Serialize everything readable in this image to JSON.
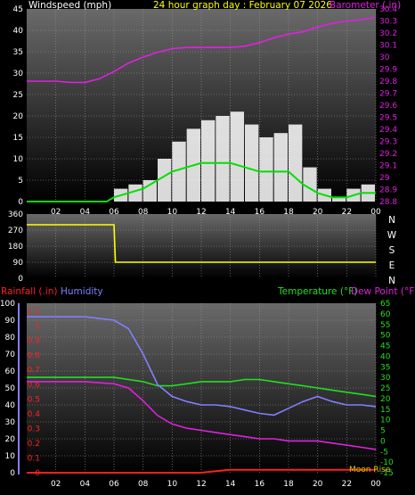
{
  "colors": {
    "windspeed": "#ffffff",
    "wind_avg": "#00e000",
    "gust_fill": "#c8ffc8",
    "barometer": "#e020e0",
    "direction": "#ffff00",
    "rainfall": "#ff2020",
    "humidity": "#8080ff",
    "temperature": "#20e020",
    "dewpoint": "#e020e0",
    "title": "#ffff00",
    "axis_text": "#ffffff",
    "moon": "#d0d000"
  },
  "x_ticks": [
    "02",
    "04",
    "06",
    "08",
    "10",
    "12",
    "14",
    "16",
    "18",
    "20",
    "22",
    "00"
  ],
  "panel1": {
    "title": "24 hour graph day : February 07 2026",
    "left_label": "Windspeed (mph)",
    "right_label": "Barometer (.in)",
    "left_ticks": [
      "45",
      "40",
      "35",
      "30",
      "25",
      "20",
      "15",
      "10",
      "5",
      "0"
    ],
    "right_ticks": [
      "30.4",
      "30.3",
      "30.2",
      "30.1",
      "30",
      "29.9",
      "29.8",
      "29.7",
      "29.6",
      "29.5",
      "29.4",
      "29.3",
      "29.2",
      "29.1",
      "29",
      "28.9",
      "28.8"
    ]
  },
  "panel2": {
    "left_ticks": [
      "360",
      "270",
      "180",
      "90",
      "0"
    ],
    "compass": [
      "N",
      "W",
      "S",
      "E",
      "N"
    ]
  },
  "panel3": {
    "rain_label": "Rainfall (.in)",
    "humidity_label": "Humidity",
    "temp_label": "Temperature (°F)",
    "dew_label": "Dew Point (°F)",
    "humidity_ticks": [
      "100",
      "90",
      "80",
      "70",
      "60",
      "50",
      "40",
      "30",
      "20",
      "10",
      "0"
    ],
    "rain_ticks": [
      "1.1",
      "1",
      "0.9",
      "0.8",
      "0.7",
      "0.6",
      "0.5",
      "0.4",
      "0.3",
      "0.2",
      "0.1",
      "0"
    ],
    "temp_ticks": [
      "65",
      "60",
      "55",
      "50",
      "45",
      "40",
      "35",
      "30",
      "25",
      "20",
      "15",
      "10",
      "5",
      "0",
      "-5",
      "-10",
      "-15"
    ],
    "moon_label": "Moon Rise"
  },
  "chart_data": [
    {
      "type": "line",
      "title": "24 hour graph day : February 07 2026",
      "x_unit": "hour",
      "series": [
        {
          "name": "Windspeed (mph)",
          "axis": "left",
          "x": [
            0,
            2,
            4,
            5.5,
            6,
            7,
            8,
            9,
            10,
            11,
            12,
            13,
            14,
            15,
            16,
            17,
            18,
            19,
            20,
            21,
            22,
            23,
            24
          ],
          "values": [
            0,
            0,
            0,
            0,
            3,
            4,
            5,
            10,
            14,
            17,
            19,
            20,
            21,
            18,
            15,
            16,
            18,
            8,
            3,
            1,
            3,
            4,
            5
          ]
        },
        {
          "name": "Wind average",
          "axis": "left",
          "x": [
            0,
            5.5,
            6,
            7,
            8,
            9,
            10,
            11,
            12,
            13,
            14,
            15,
            16,
            17,
            18,
            19,
            20,
            21,
            22,
            23,
            24
          ],
          "values": [
            0,
            0,
            1,
            2,
            3,
            5,
            7,
            8,
            9,
            9,
            9,
            8,
            7,
            7,
            7,
            4,
            2,
            1,
            1,
            2,
            2
          ]
        },
        {
          "name": "Barometer (.in)",
          "axis": "right",
          "x": [
            0,
            1,
            2,
            3,
            4,
            5,
            6,
            7,
            8,
            9,
            10,
            11,
            12,
            13,
            14,
            15,
            16,
            17,
            18,
            19,
            20,
            21,
            22,
            23,
            24
          ],
          "values": [
            29.8,
            29.8,
            29.8,
            29.79,
            29.79,
            29.82,
            29.88,
            29.95,
            30.0,
            30.04,
            30.07,
            30.08,
            30.08,
            30.08,
            30.08,
            30.09,
            30.12,
            30.16,
            30.19,
            30.21,
            30.25,
            30.28,
            30.3,
            30.31,
            30.33
          ]
        }
      ],
      "ylim_left": [
        0,
        45
      ],
      "ylim_right": [
        28.8,
        30.4
      ],
      "grid": true
    },
    {
      "type": "line",
      "series": [
        {
          "name": "Wind direction",
          "x": [
            0,
            6,
            6.1,
            24
          ],
          "values": [
            300,
            300,
            90,
            90
          ],
          "note_range": [
            90,
            360
          ]
        }
      ],
      "ylim": [
        0,
        360
      ],
      "grid": true
    },
    {
      "type": "line",
      "series": [
        {
          "name": "Humidity",
          "axis": "humidity",
          "x": [
            0,
            2,
            4,
            6,
            7,
            8,
            9,
            10,
            11,
            12,
            13,
            14,
            15,
            16,
            17,
            18,
            19,
            20,
            21,
            22,
            23,
            24
          ],
          "values": [
            92,
            92,
            92,
            90,
            85,
            70,
            52,
            45,
            42,
            40,
            40,
            39,
            37,
            35,
            34,
            38,
            42,
            45,
            42,
            40,
            40,
            39
          ]
        },
        {
          "name": "Temperature (°F)",
          "axis": "temp",
          "x": [
            0,
            2,
            4,
            6,
            7,
            8,
            9,
            10,
            11,
            12,
            13,
            14,
            15,
            16,
            17,
            18,
            19,
            20,
            21,
            22,
            23,
            24
          ],
          "values": [
            30,
            30,
            30,
            30,
            29,
            28,
            26,
            26,
            27,
            28,
            28,
            28,
            29,
            29,
            28,
            27,
            26,
            25,
            24,
            23,
            22,
            21
          ]
        },
        {
          "name": "Dew Point (°F)",
          "axis": "temp",
          "x": [
            0,
            2,
            4,
            6,
            7,
            8,
            9,
            10,
            11,
            12,
            13,
            14,
            15,
            16,
            17,
            18,
            19,
            20,
            21,
            22,
            23,
            24
          ],
          "values": [
            28,
            28,
            28,
            27,
            25,
            19,
            12,
            8,
            6,
            5,
            4,
            3,
            2,
            1,
            1,
            0,
            0,
            0,
            -1,
            -2,
            -3,
            -4
          ]
        },
        {
          "name": "Rainfall (.in)",
          "axis": "rain",
          "x": [
            0,
            12,
            13,
            14,
            24
          ],
          "values": [
            0,
            0,
            0.01,
            0.02,
            0.02
          ]
        }
      ],
      "ylim_humidity": [
        0,
        100
      ],
      "ylim_rain": [
        0,
        1.15
      ],
      "ylim_temp": [
        -15,
        65
      ],
      "grid": true
    }
  ]
}
